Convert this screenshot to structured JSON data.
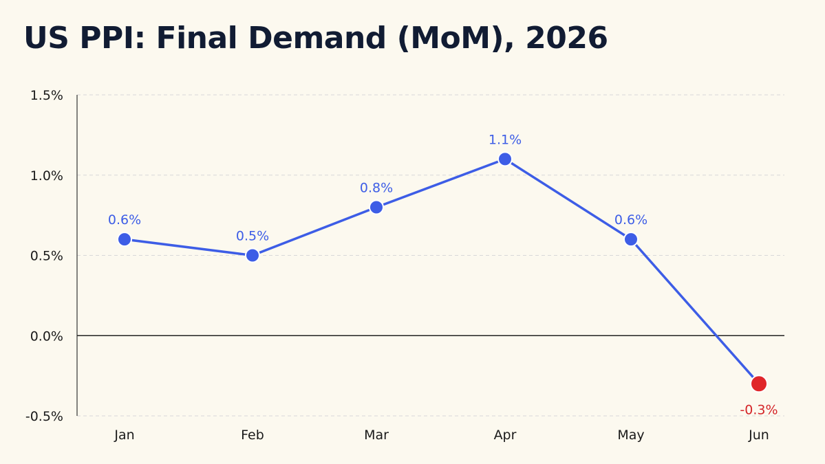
{
  "chart_data": {
    "type": "line",
    "title": "US PPI: Final Demand (MoM), 2026",
    "xlabel": "",
    "ylabel": "",
    "categories": [
      "Jan",
      "Feb",
      "Mar",
      "Apr",
      "May",
      "Jun"
    ],
    "series": [
      {
        "values": [
          0.6,
          0.5,
          0.8,
          1.1,
          0.6,
          -0.3
        ],
        "value_labels": [
          "0.6%",
          "0.5%",
          "0.8%",
          "1.1%",
          "0.6%",
          "-0.3%"
        ]
      }
    ],
    "ylim": [
      -0.5,
      1.5
    ],
    "yticks": [
      -0.5,
      0.0,
      0.5,
      1.0,
      1.5
    ],
    "ytick_labels": [
      "-0.5%",
      "0.0%",
      "0.5%",
      "1.0%",
      "1.5%"
    ],
    "grid": "horizontal dashed",
    "zero_line": true,
    "colors": {
      "line": "#3d5de6",
      "positive_point": "#3d5de6",
      "negative_point": "#e0262a",
      "negative_label": "#d42428",
      "title": "#111c33",
      "grid": "#d8d8d8",
      "axis": "#333333",
      "background": "#fcf9ef"
    }
  }
}
